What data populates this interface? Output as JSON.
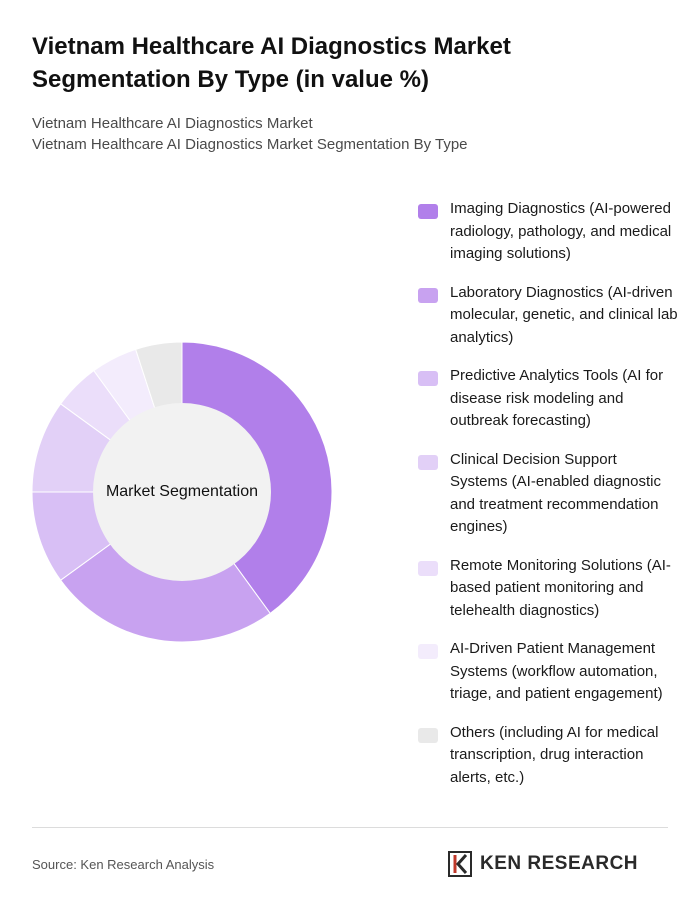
{
  "header": {
    "title_line1": "Vietnam Healthcare AI Diagnostics Market",
    "title_line2": "Segmentation By Type (in value %)",
    "subtitle_line1": "Vietnam Healthcare AI Diagnostics Market",
    "subtitle_line2": "Vietnam Healthcare AI Diagnostics Market Segmentation By Type"
  },
  "chart_data": {
    "type": "pie",
    "variant": "donut",
    "center_label": "Market Segmentation",
    "legend_position": "right",
    "categories": [
      "Imaging Diagnostics (AI-powered radiology, pathology, and medical imaging solutions)",
      "Laboratory Diagnostics (AI-driven molecular, genetic, and clinical lab analytics)",
      "Predictive Analytics Tools (AI for disease risk modeling and outbreak forecasting)",
      "Clinical Decision Support Systems (AI-enabled diagnostic and treatment recommendation engines)",
      "Remote Monitoring Solutions (AI-based patient monitoring and telehealth diagnostics)",
      "AI-Driven Patient Management Systems (workflow automation, triage, and patient engagement)",
      "Others (including AI for medical transcription, drug interaction alerts, etc.)"
    ],
    "values": [
      40,
      25,
      10,
      10,
      5,
      5,
      5
    ],
    "colors": [
      "#b17fea",
      "#c8a2f0",
      "#d8bff5",
      "#e2d0f7",
      "#ebdefa",
      "#f3ecfc",
      "#e9e9e9"
    ],
    "center_fill": "#f2f2f2"
  },
  "footer": {
    "source": "Source: Ken Research Analysis",
    "brand": "KEN RESEARCH"
  }
}
